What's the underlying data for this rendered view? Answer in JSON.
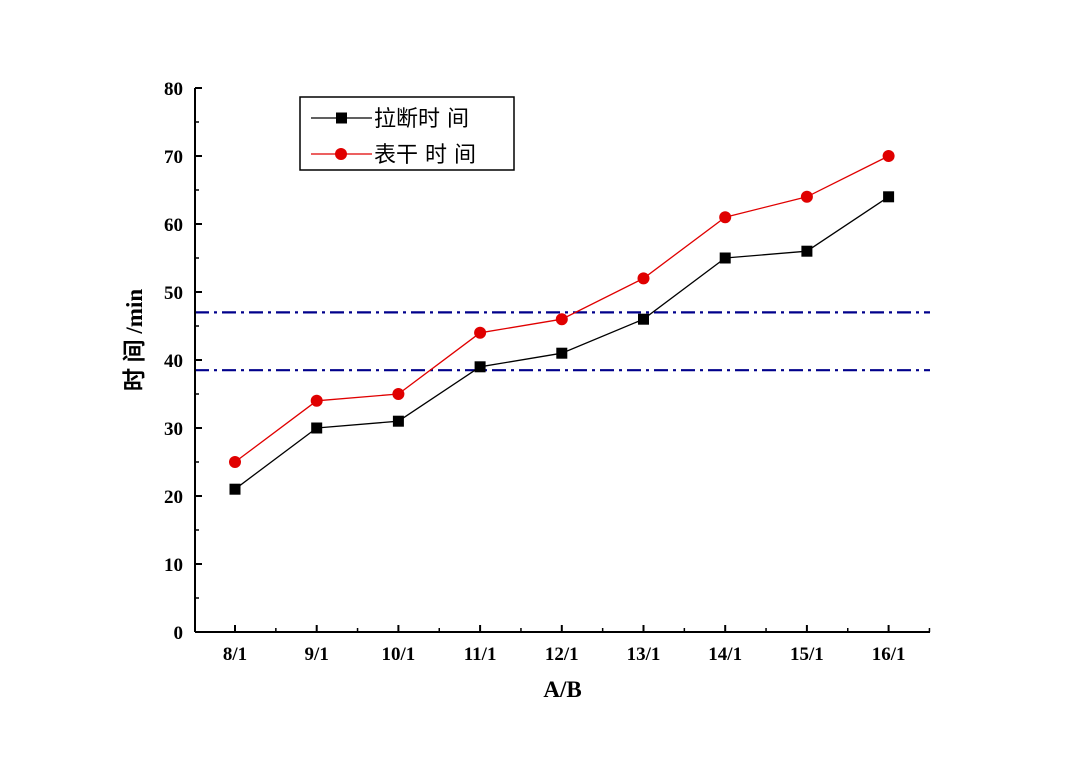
{
  "chart_data": {
    "type": "line",
    "categories": [
      "8/1",
      "9/1",
      "10/1",
      "11/1",
      "12/1",
      "13/1",
      "14/1",
      "15/1",
      "16/1"
    ],
    "series": [
      {
        "name": "拉断时 间",
        "values": [
          21,
          30,
          31,
          39,
          41,
          46,
          55,
          56,
          64
        ],
        "color": "#000000",
        "marker": "square"
      },
      {
        "name": "表干 时 间",
        "values": [
          25,
          34,
          35,
          44,
          46,
          52,
          61,
          64,
          70
        ],
        "color": "#e00000",
        "marker": "circle"
      }
    ],
    "reference_lines": [
      {
        "y": 47,
        "color": "#00008b",
        "style": "dash-dot"
      },
      {
        "y": 38.5,
        "color": "#00008b",
        "style": "dash-dot"
      }
    ],
    "xlabel": "A/B",
    "ylabel": "时 间 /min",
    "ylim": [
      0,
      80
    ],
    "yticks": [
      0,
      10,
      20,
      30,
      40,
      50,
      60,
      70,
      80
    ],
    "grid": false,
    "legend_position": "top-left"
  }
}
